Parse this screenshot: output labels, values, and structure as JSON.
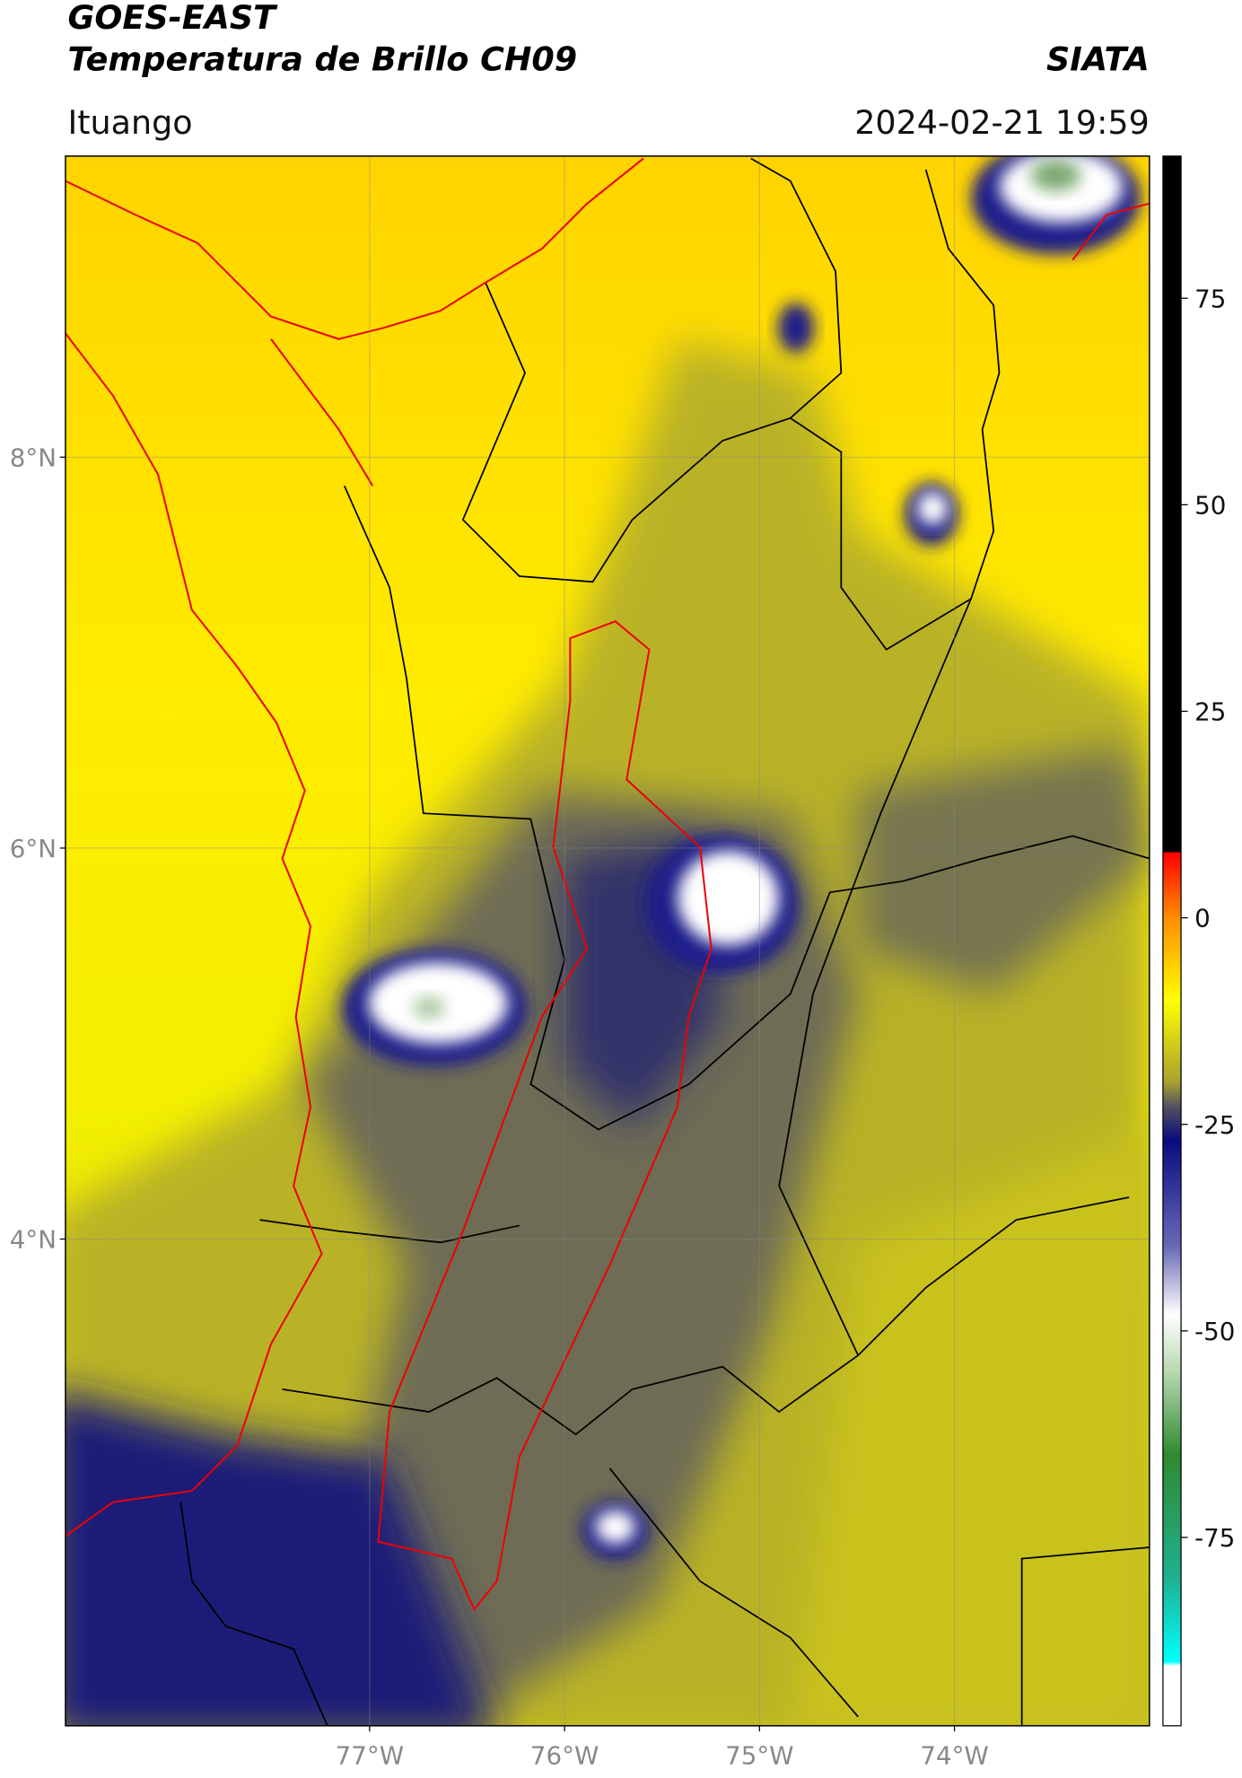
{
  "header": {
    "title": "GOES-EAST",
    "subtitle": "Temperatura de Brillo CH09",
    "brand": "SIATA",
    "region": "Ituango",
    "datetime": "2024-02-21 19:59"
  },
  "map": {
    "xlim": [
      -78.56,
      -73.0
    ],
    "ylim": [
      1.51,
      9.54
    ],
    "xticks": [
      {
        "value": -77,
        "label": "77°W"
      },
      {
        "value": -76,
        "label": "76°W"
      },
      {
        "value": -75,
        "label": "75°W"
      },
      {
        "value": -74,
        "label": "74°W"
      }
    ],
    "yticks": [
      {
        "value": 4,
        "label": "4°N"
      },
      {
        "value": 6,
        "label": "6°N"
      },
      {
        "value": 8,
        "label": "8°N"
      }
    ],
    "grid": true
  },
  "colorbar": {
    "lim": [
      -97.8,
      92.2
    ],
    "ticks": [
      -75,
      -50,
      -25,
      0,
      25,
      50,
      75
    ]
  }
}
